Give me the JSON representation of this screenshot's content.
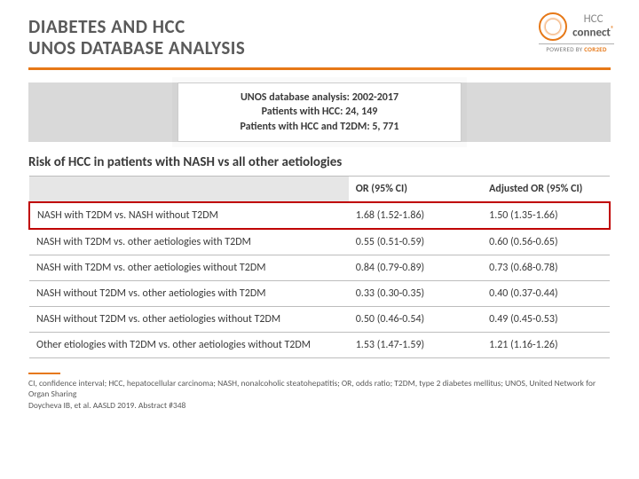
{
  "title_line1": "DIABETES AND HCC",
  "title_line2": "UNOS DATABASE ANALYSIS",
  "logo": {
    "brand_prefix": "HCC",
    "brand_suffix": "connect",
    "sup": "®",
    "caption_prefix": "POWERED BY ",
    "caption_brand": "COR2ED"
  },
  "info": {
    "line1": "UNOS database analysis: 2002-2017",
    "line2": "Patients with HCC: 24, 149",
    "line3": "Patients with HCC and T2DM: 5, 771"
  },
  "subhead": "Risk of HCC in patients with NASH vs all other aetiologies",
  "table": {
    "headers": {
      "or": "OR (95% CI)",
      "adj": "Adjusted OR (95% CI)"
    },
    "rows": [
      {
        "comp": "NASH with T2DM vs. NASH without T2DM",
        "or": "1.68 (1.52-1.86)",
        "adj": "1.50 (1.35-1.66)",
        "highlight": true
      },
      {
        "comp": "NASH with T2DM vs. other aetiologies with T2DM",
        "or": "0.55 (0.51-0.59)",
        "adj": "0.60 (0.56-0.65)"
      },
      {
        "comp": "NASH with T2DM vs. other aetiologies without T2DM",
        "or": "0.84 (0.79-0.89)",
        "adj": "0.73 (0.68-0.78)"
      },
      {
        "comp": "NASH without T2DM vs. other aetiologies with T2DM",
        "or": "0.33 (0.30-0.35)",
        "adj": "0.40 (0.37-0.44)"
      },
      {
        "comp": "NASH without T2DM vs. other aetiologies without T2DM",
        "or": "0.50 (0.46-0.54)",
        "adj": "0.49 (0.45-0.53)"
      },
      {
        "comp": "Other etiologies with T2DM vs. other aetiologies without T2DM",
        "or": "1.53 (1.47-1.59)",
        "adj": "1.21 (1.16-1.26)"
      }
    ]
  },
  "footnote": {
    "line1": "CI, confidence interval; HCC, hepatocellular carcinoma; NASH, nonalcoholic steatohepatitis; OR, odds ratio; T2DM, type 2 diabetes mellitus; UNOS, United Network for Organ Sharing",
    "line2": "Doycheva IB, et al. AASLD 2019. Abstract #348"
  }
}
